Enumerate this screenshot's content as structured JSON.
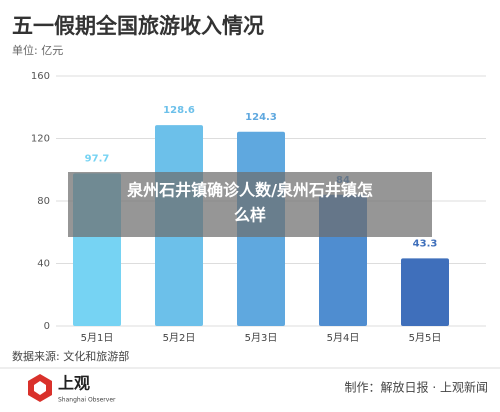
{
  "chart_data": {
    "type": "bar",
    "title": "五一假期全国旅游收入情况",
    "subtitle": "单位: 亿元",
    "categories": [
      "5月1日",
      "5月2日",
      "5月3日",
      "5月4日",
      "5月5日"
    ],
    "values": [
      97.7,
      128.6,
      124.3,
      84,
      43.3
    ],
    "colors": [
      "#76d3f3",
      "#6cc0ea",
      "#5fa8df",
      "#4f8dd0",
      "#3f6fbb"
    ],
    "ylim": [
      0,
      160
    ],
    "yticks": [
      0,
      40,
      80,
      120,
      160
    ],
    "grid": true,
    "source": "数据来源: 文化和旅游部"
  },
  "banner": [
    "泉州石井镇确诊人数/泉州石井镇怎",
    "么样"
  ],
  "footer": {
    "logo": "上观",
    "logo_sub": "Shanghai Observer",
    "credit": "制作：解放日报 · 上观新闻"
  }
}
